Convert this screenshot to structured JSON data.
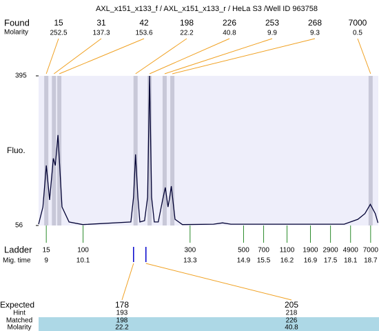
{
  "chart_data": {
    "type": "line",
    "title": "AXL_x151_x133_f / AXL_x151_x133_r / HeLa S3 /Well ID 963758",
    "y_label": "Fluo.",
    "ylim": [
      56,
      395
    ],
    "yticks": [
      56,
      395
    ],
    "xlim": [
      8.77,
      18.93
    ],
    "color": "#000033",
    "background": "#eeeefa",
    "x": [
      8.77,
      8.9,
      9.0,
      9.1,
      9.21,
      9.27,
      9.35,
      9.47,
      9.68,
      10.09,
      11.53,
      11.61,
      11.67,
      11.74,
      11.8,
      11.94,
      12.03,
      12.09,
      12.15,
      12.23,
      12.35,
      12.48,
      12.56,
      12.64,
      12.68,
      12.74,
      12.85,
      13.07,
      14.0,
      14.27,
      14.52,
      17.91,
      18.32,
      18.53,
      18.69,
      18.84,
      18.92
    ],
    "values": [
      59,
      98,
      192,
      114,
      208,
      192,
      261,
      98,
      64,
      58,
      64,
      120,
      217,
      120,
      64,
      67,
      120,
      395,
      120,
      64,
      64,
      114,
      142,
      98,
      114,
      145,
      70,
      58,
      59,
      62,
      59,
      59,
      70,
      83,
      104,
      83,
      62
    ],
    "found": {
      "label": "Found",
      "sub_label": "Molarity",
      "sizes": [
        15,
        31,
        42,
        198,
        226,
        253,
        268,
        7000
      ],
      "molarity": [
        252.5,
        137.3,
        153.6,
        22.2,
        40.8,
        9.9,
        9.3,
        0.5
      ],
      "times": [
        9.0,
        9.23,
        9.39,
        11.67,
        12.09,
        12.54,
        12.77,
        18.7
      ]
    },
    "ladder": {
      "label": "Ladder",
      "sub_label": "Mig. time",
      "sizes": [
        15,
        100,
        300,
        500,
        700,
        1100,
        1900,
        2900,
        4900,
        7000
      ],
      "times": [
        9,
        10.1,
        13.3,
        14.9,
        15.5,
        16.2,
        16.9,
        17.5,
        18.1,
        18.7
      ]
    },
    "expected": {
      "label": "Expected",
      "hint_label": "Hint",
      "matched_label": "Matched",
      "molarity_label": "Molarity",
      "sizes": [
        178,
        205
      ],
      "hints": [
        193,
        218
      ],
      "matched": [
        198,
        226
      ],
      "molarity": [
        22.2,
        40.8
      ],
      "times": [
        11.61,
        11.98
      ]
    }
  }
}
